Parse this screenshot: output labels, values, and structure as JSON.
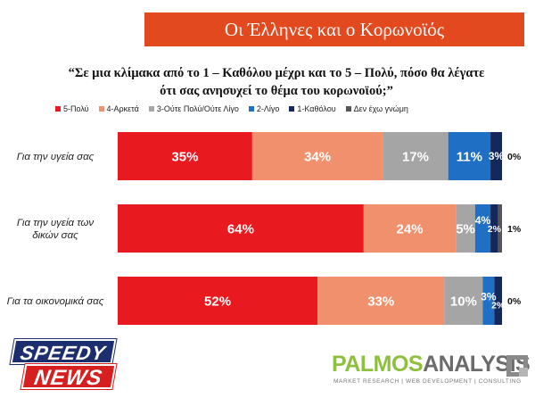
{
  "header": {
    "title": "Οι Έλληνες και ο Κορωνοϊός",
    "question_line1": "“Σε μια κλίμακα από το 1 – Καθόλου μέχρι και το 5 – Πολύ, πόσο θα λέγατε",
    "question_line2": "ότι σας ανησυχεί το θέμα του κορωνοϊού;”"
  },
  "chart_data": {
    "type": "bar",
    "orientation": "horizontal",
    "stacked": true,
    "normalized_to_percent": true,
    "title": "",
    "xlabel": "",
    "ylabel": "",
    "grid": false,
    "legend_position": "top",
    "categories": [
      "Για την υγεία σας",
      "Για την υγεία των δικών σας",
      "Για τα οικονομικά σας"
    ],
    "series": [
      {
        "name": "5-Πολύ",
        "color": "#e8191f",
        "values": [
          35,
          64,
          52
        ],
        "labels": [
          "35%",
          "64%",
          "52%"
        ]
      },
      {
        "name": "4-Αρκετά",
        "color": "#f0906c",
        "values": [
          34,
          24,
          33
        ],
        "labels": [
          "34%",
          "24%",
          "33%"
        ]
      },
      {
        "name": "3-Ούτε Πολύ/Ούτε Λίγο",
        "color": "#a5a5a5",
        "values": [
          17,
          5,
          10
        ],
        "labels": [
          "17%",
          "5%",
          "10%"
        ]
      },
      {
        "name": "2-Λίγο",
        "color": "#1f6fc5",
        "values": [
          11,
          4,
          3
        ],
        "labels": [
          "11%",
          "4%",
          "3%"
        ]
      },
      {
        "name": "1-Καθόλου",
        "color": "#14285c",
        "values": [
          3,
          2,
          2
        ],
        "labels": [
          "3%",
          "2%",
          "2%"
        ]
      },
      {
        "name": "Δεν έχω γνώμη",
        "color": "#555555",
        "values": [
          0,
          1,
          0
        ],
        "labels": [
          "0%",
          "1%",
          "0%"
        ]
      }
    ]
  },
  "logos": {
    "left_top": "SPEEDY",
    "left_bottom": "NEWS",
    "right_a": "PALMOS",
    "right_b": "ANALYSIS",
    "right_tagline": "MARKET RESEARCH | WEB DEVELOPMENT | CONSULTING"
  }
}
